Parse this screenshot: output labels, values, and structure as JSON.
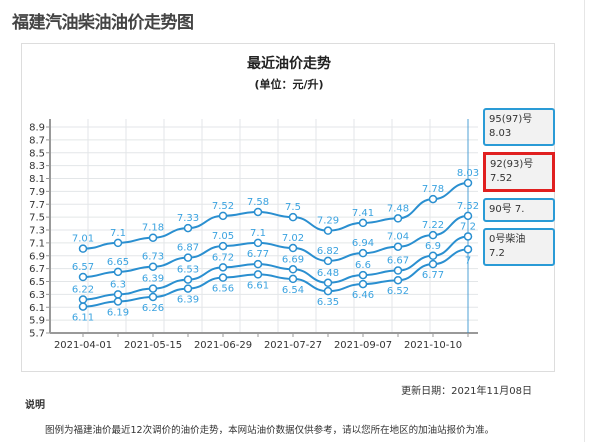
{
  "page_title": "福建汽油柴油油价走势图",
  "update_date": "更新日期：2021年11月08日",
  "notes": {
    "title": "说明",
    "text": "图例为福建油价最近12次调价的油价走势，本网站油价数据仅供参考，请以您所在地区的加油站报价为准。"
  },
  "tooltips": [
    {
      "name": "95(97)号",
      "value": "8.03"
    },
    {
      "name": "90号",
      "value": "7.",
      "text": "90号 7."
    },
    {
      "name": "92(93)号",
      "value": "7.52",
      "text": "92(93)号 7.52"
    },
    {
      "name": "0号柴油",
      "value": "7.2"
    }
  ],
  "colors": {
    "line": "#2a8fd0",
    "label": "#3ba3e0",
    "highlight": "#e02020"
  },
  "chart_data": {
    "type": "line",
    "title": "最近油价走势",
    "subtitle": "(单位：元/升)",
    "xlabel": "",
    "ylabel": "",
    "ylim": [
      5.7,
      8.9
    ],
    "yticks": [
      "5.7",
      "5.9",
      "6.1",
      "6.3",
      "6.5",
      "6.7",
      "6.9",
      "7.1",
      "7.3",
      "7.5",
      "7.7",
      "7.9",
      "8.1",
      "8.3",
      "8.5",
      "8.7",
      "8.9"
    ],
    "x_tick_labels": [
      "2021-04-01",
      "2021-05-15",
      "2021-06-29",
      "2021-07-27",
      "2021-09-07",
      "2021-10-10"
    ],
    "grid": true,
    "series": [
      {
        "name": "95(97)号",
        "values": [
          7.01,
          7.1,
          7.18,
          7.33,
          7.52,
          7.58,
          7.5,
          7.29,
          7.41,
          7.48,
          7.78,
          8.03
        ]
      },
      {
        "name": "92(93)号",
        "values": [
          6.57,
          6.65,
          6.73,
          6.87,
          7.05,
          7.1,
          7.02,
          6.82,
          6.94,
          7.04,
          7.22,
          7.52
        ]
      },
      {
        "name": "0号柴油",
        "values": [
          6.22,
          6.3,
          6.39,
          6.53,
          6.72,
          6.77,
          6.69,
          6.48,
          6.6,
          6.67,
          6.9,
          7.2
        ]
      },
      {
        "name": "90号",
        "values": [
          6.11,
          6.19,
          6.26,
          6.39,
          6.56,
          6.61,
          6.54,
          6.35,
          6.46,
          6.52,
          6.77,
          7.0
        ]
      }
    ]
  }
}
